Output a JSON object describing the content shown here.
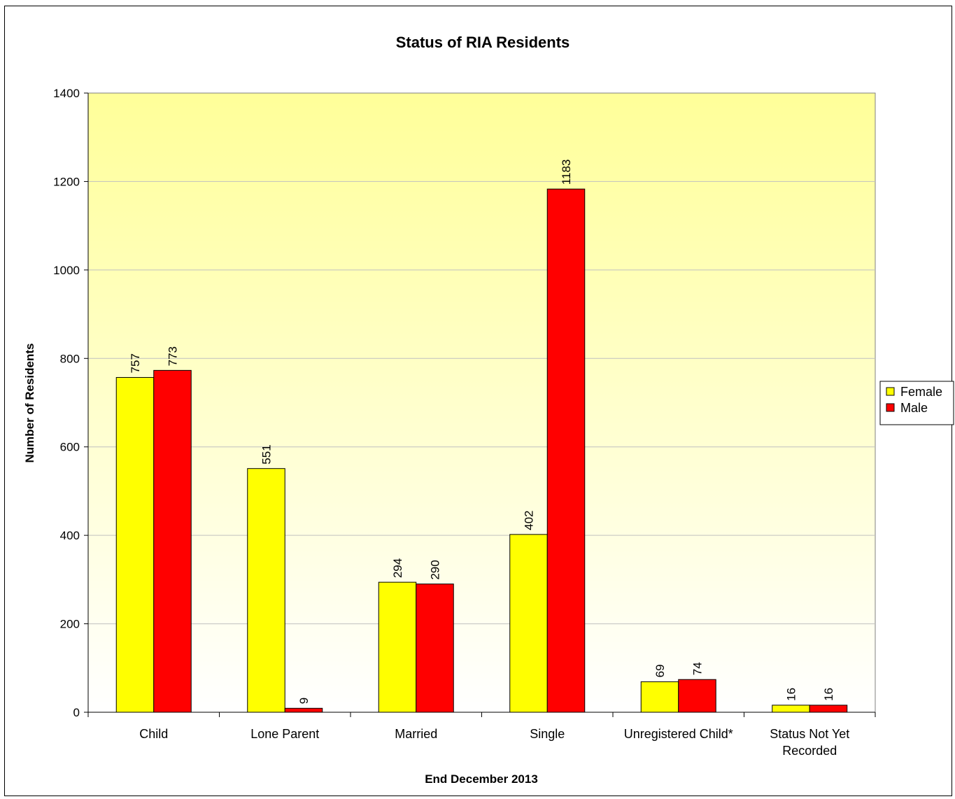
{
  "chart_data": {
    "type": "bar",
    "title": "Status of RIA Residents",
    "xlabel": "End December 2013",
    "ylabel": "Number of Residents",
    "ylim": [
      0,
      1400
    ],
    "yticks": [
      0,
      200,
      400,
      600,
      800,
      1000,
      1200,
      1400
    ],
    "grid": true,
    "legend_position": "right",
    "categories": [
      [
        "Child"
      ],
      [
        "Lone Parent"
      ],
      [
        "Married"
      ],
      [
        "Single"
      ],
      [
        "Unregistered Child*"
      ],
      [
        "Status Not Yet",
        "Recorded"
      ]
    ],
    "series": [
      {
        "name": "Female",
        "color": "#ffff00",
        "values": [
          757,
          551,
          294,
          402,
          69,
          16
        ]
      },
      {
        "name": "Male",
        "color": "#ff0000",
        "values": [
          773,
          9,
          290,
          1183,
          74,
          16
        ]
      }
    ],
    "plot_background": {
      "top": "#ffff99",
      "bottom": "#ffffff"
    }
  }
}
